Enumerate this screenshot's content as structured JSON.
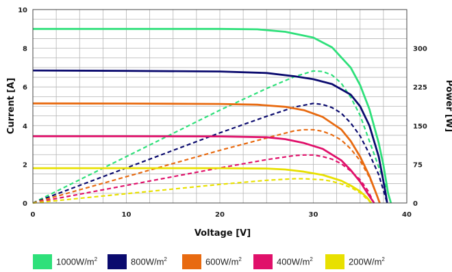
{
  "chart_data": {
    "type": "line",
    "xlabel": "Voltage [V]",
    "ylabel": "Current [A]",
    "y2label": "Power [W]",
    "xlim": [
      0,
      40
    ],
    "ylim": [
      0,
      10
    ],
    "y2lim": [
      0,
      375
    ],
    "xticks": [
      0,
      10,
      20,
      30,
      40
    ],
    "yticks": [
      0,
      2,
      4,
      6,
      8,
      10
    ],
    "y2ticks": [
      0,
      75,
      150,
      225,
      300
    ],
    "grid": true,
    "legend_position": "bottom",
    "series": [
      {
        "name": "1000W/m2",
        "color": "#2ee07a",
        "current": [
          [
            0,
            9.0
          ],
          [
            10,
            9.0
          ],
          [
            20,
            9.0
          ],
          [
            24,
            8.98
          ],
          [
            27,
            8.85
          ],
          [
            30,
            8.55
          ],
          [
            32,
            8.05
          ],
          [
            34,
            7.0
          ],
          [
            35,
            6.1
          ],
          [
            36,
            4.85
          ],
          [
            37,
            3.1
          ],
          [
            37.5,
            1.95
          ],
          [
            38,
            0.5
          ],
          [
            38.3,
            0
          ]
        ],
        "power": [
          [
            0,
            0
          ],
          [
            10,
            90
          ],
          [
            20,
            180
          ],
          [
            25,
            222
          ],
          [
            28,
            245
          ],
          [
            30,
            256
          ],
          [
            31,
            255
          ],
          [
            32,
            248
          ],
          [
            33,
            232
          ],
          [
            34,
            205
          ],
          [
            35,
            170
          ],
          [
            36,
            120
          ],
          [
            37,
            70
          ],
          [
            38,
            20
          ],
          [
            38.3,
            0
          ]
        ]
      },
      {
        "name": "800W/m2",
        "color": "#0a0a6e",
        "current": [
          [
            0,
            6.85
          ],
          [
            10,
            6.83
          ],
          [
            20,
            6.8
          ],
          [
            25,
            6.72
          ],
          [
            28,
            6.55
          ],
          [
            30,
            6.4
          ],
          [
            32,
            6.15
          ],
          [
            34,
            5.6
          ],
          [
            35,
            5.0
          ],
          [
            36,
            4.0
          ],
          [
            37,
            2.4
          ],
          [
            37.7,
            0.6
          ],
          [
            37.9,
            0
          ]
        ],
        "power": [
          [
            0,
            0
          ],
          [
            10,
            68
          ],
          [
            20,
            136
          ],
          [
            25,
            168
          ],
          [
            28,
            186
          ],
          [
            30,
            193
          ],
          [
            31,
            191
          ],
          [
            32,
            185
          ],
          [
            33,
            174
          ],
          [
            34,
            155
          ],
          [
            35,
            130
          ],
          [
            36,
            95
          ],
          [
            37,
            55
          ],
          [
            37.9,
            0
          ]
        ]
      },
      {
        "name": "600W/m2",
        "color": "#e86a10",
        "current": [
          [
            0,
            5.15
          ],
          [
            10,
            5.14
          ],
          [
            20,
            5.12
          ],
          [
            24,
            5.08
          ],
          [
            27,
            4.97
          ],
          [
            29,
            4.8
          ],
          [
            31,
            4.45
          ],
          [
            33,
            3.8
          ],
          [
            34,
            3.2
          ],
          [
            35,
            2.4
          ],
          [
            36,
            1.4
          ],
          [
            36.8,
            0.4
          ],
          [
            37.1,
            0
          ]
        ],
        "power": [
          [
            0,
            0
          ],
          [
            10,
            51
          ],
          [
            20,
            102
          ],
          [
            25,
            126
          ],
          [
            28,
            140
          ],
          [
            29,
            142
          ],
          [
            30,
            142
          ],
          [
            31,
            139
          ],
          [
            32,
            132
          ],
          [
            33,
            122
          ],
          [
            34,
            105
          ],
          [
            35,
            82
          ],
          [
            36,
            50
          ],
          [
            36.8,
            15
          ],
          [
            37.1,
            0
          ]
        ]
      },
      {
        "name": "400W/m2",
        "color": "#e0106a",
        "current": [
          [
            0,
            3.45
          ],
          [
            10,
            3.45
          ],
          [
            20,
            3.44
          ],
          [
            25,
            3.4
          ],
          [
            27,
            3.3
          ],
          [
            29,
            3.1
          ],
          [
            31,
            2.8
          ],
          [
            33,
            2.2
          ],
          [
            34,
            1.7
          ],
          [
            35,
            1.1
          ],
          [
            35.8,
            0.5
          ],
          [
            36.5,
            0
          ]
        ],
        "power": [
          [
            0,
            0
          ],
          [
            10,
            34
          ],
          [
            20,
            68
          ],
          [
            25,
            84
          ],
          [
            28,
            92
          ],
          [
            29,
            93
          ],
          [
            30,
            93
          ],
          [
            31,
            90
          ],
          [
            32,
            85
          ],
          [
            33,
            76
          ],
          [
            34,
            62
          ],
          [
            35,
            45
          ],
          [
            35.8,
            25
          ],
          [
            36.5,
            0
          ]
        ]
      },
      {
        "name": "200W/m2",
        "color": "#e8e000",
        "current": [
          [
            0,
            1.8
          ],
          [
            10,
            1.8
          ],
          [
            20,
            1.8
          ],
          [
            25,
            1.78
          ],
          [
            27,
            1.73
          ],
          [
            29,
            1.62
          ],
          [
            31,
            1.45
          ],
          [
            33,
            1.15
          ],
          [
            34,
            0.9
          ],
          [
            35,
            0.6
          ],
          [
            35.7,
            0.3
          ],
          [
            36.2,
            0
          ]
        ],
        "power": [
          [
            0,
            0
          ],
          [
            10,
            18
          ],
          [
            20,
            36
          ],
          [
            25,
            44
          ],
          [
            28,
            47
          ],
          [
            29,
            47
          ],
          [
            30,
            46
          ],
          [
            31,
            45
          ],
          [
            32,
            42
          ],
          [
            33,
            37
          ],
          [
            34,
            30
          ],
          [
            35,
            20
          ],
          [
            36.2,
            0
          ]
        ]
      }
    ]
  },
  "legend": [
    {
      "label": "1000W/m",
      "sup": "2",
      "color": "#2ee07a"
    },
    {
      "label": "800W/m",
      "sup": "2",
      "color": "#0a0a6e"
    },
    {
      "label": "600W/m",
      "sup": "2",
      "color": "#e86a10"
    },
    {
      "label": "400W/m",
      "sup": "2",
      "color": "#e0106a"
    },
    {
      "label": "200W/m",
      "sup": "2",
      "color": "#e8e000"
    }
  ]
}
